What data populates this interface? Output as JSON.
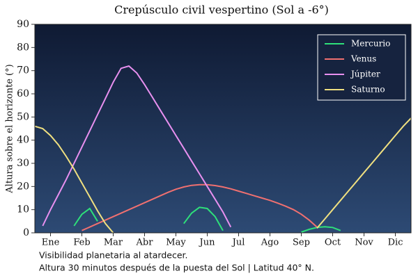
{
  "chart_data": {
    "type": "line",
    "title": "Crepúsculo civil vespertino (Sol a -6°)",
    "y_label": "Altura sobre el horizonte (°)",
    "notes": [
      "Visibilidad planetaria al atardecer.",
      "Altura 30 minutos después de la puesta del Sol  |  Latitud 40° N."
    ],
    "x": [
      -0.5,
      -0.25,
      0,
      0.25,
      0.5,
      0.75,
      1,
      1.25,
      1.5,
      1.75,
      2,
      2.25,
      2.5,
      2.75,
      3,
      3.25,
      3.5,
      3.75,
      4,
      4.25,
      4.5,
      4.75,
      5,
      5.25,
      5.5,
      5.75,
      6,
      6.25,
      6.5,
      6.75,
      7,
      7.25,
      7.5,
      7.75,
      8,
      8.25,
      8.5,
      8.75,
      9,
      9.25,
      9.5,
      9.75,
      10,
      10.25,
      10.5,
      10.75,
      11,
      11.25,
      11.5
    ],
    "series": [
      {
        "name": "Mercurio",
        "color": "#2ee07a",
        "values": [
          null,
          null,
          null,
          null,
          null,
          3,
          8,
          10.5,
          5,
          null,
          null,
          null,
          null,
          null,
          null,
          null,
          null,
          null,
          null,
          4,
          8.5,
          11,
          10.5,
          7,
          1,
          null,
          null,
          null,
          null,
          null,
          null,
          null,
          null,
          null,
          0.3,
          1.5,
          2.3,
          2.6,
          2.3,
          1,
          null,
          null,
          null,
          null,
          null,
          null,
          null,
          null,
          null
        ]
      },
      {
        "name": "Venus",
        "color": "#f07070",
        "values": [
          null,
          null,
          null,
          null,
          null,
          null,
          1,
          2.5,
          4,
          5.5,
          7,
          8.5,
          10,
          11.5,
          13,
          14.5,
          16,
          17.5,
          18.8,
          19.8,
          20.5,
          20.8,
          20.8,
          20.4,
          19.8,
          19,
          18,
          17,
          16,
          15,
          14,
          12.8,
          11.5,
          10,
          8,
          5.5,
          2.5,
          null,
          null,
          null,
          null,
          null,
          null,
          null,
          null,
          null,
          null,
          null,
          null
        ]
      },
      {
        "name": "Júpiter",
        "color": "#e890f0",
        "values": [
          null,
          3,
          10,
          16.5,
          23,
          30,
          37,
          44,
          51,
          58,
          65,
          71,
          72,
          69,
          64,
          58.5,
          53,
          47.5,
          42,
          36.5,
          31,
          25.5,
          20,
          14.5,
          9,
          2.5,
          null,
          null,
          null,
          null,
          null,
          null,
          null,
          null,
          null,
          null,
          null,
          null,
          null,
          null,
          null,
          null,
          null,
          null,
          null,
          null,
          null,
          null,
          null
        ]
      },
      {
        "name": "Saturno",
        "color": "#f0e080",
        "values": [
          46,
          45,
          42,
          38,
          33,
          27.5,
          21.5,
          15.5,
          9.5,
          4,
          0,
          null,
          null,
          null,
          null,
          null,
          null,
          null,
          null,
          null,
          null,
          null,
          null,
          null,
          null,
          null,
          null,
          null,
          null,
          null,
          null,
          null,
          null,
          null,
          null,
          null,
          2,
          6,
          10,
          14,
          18,
          22,
          26,
          30,
          34,
          38,
          42,
          46,
          49.5
        ]
      }
    ],
    "xlim": [
      -0.5,
      11.5
    ],
    "xticks": [
      {
        "value": 0,
        "label": "Ene"
      },
      {
        "value": 1,
        "label": "Feb"
      },
      {
        "value": 2,
        "label": "Mar"
      },
      {
        "value": 3,
        "label": "Abr"
      },
      {
        "value": 4,
        "label": "May"
      },
      {
        "value": 5,
        "label": "Jun"
      },
      {
        "value": 6,
        "label": "Jul"
      },
      {
        "value": 7,
        "label": "Ago"
      },
      {
        "value": 8,
        "label": "Sep"
      },
      {
        "value": 9,
        "label": "Oct"
      },
      {
        "value": 10,
        "label": "Nov"
      },
      {
        "value": 11,
        "label": "Dic"
      }
    ],
    "ylim": [
      0,
      90
    ],
    "yticks": [
      0,
      10,
      20,
      30,
      40,
      50,
      60,
      70,
      80,
      90
    ],
    "legend": "upper right"
  }
}
